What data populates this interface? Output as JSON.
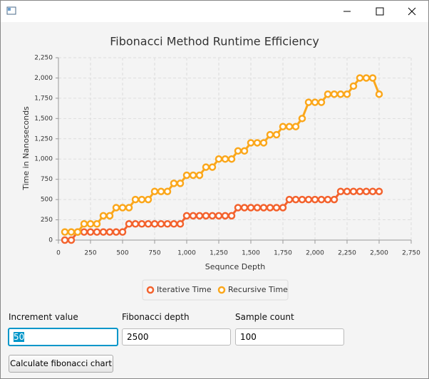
{
  "chart_data": {
    "type": "line",
    "title": "Fibonacci Method Runtime Efficiency",
    "x_label": "Sequnce Depth",
    "y_label": "Time in Nanoseconds",
    "x": [
      50,
      100,
      150,
      200,
      250,
      300,
      350,
      400,
      450,
      500,
      550,
      600,
      650,
      700,
      750,
      800,
      850,
      900,
      950,
      1000,
      1050,
      1100,
      1150,
      1200,
      1250,
      1300,
      1350,
      1400,
      1450,
      1500,
      1550,
      1600,
      1650,
      1700,
      1750,
      1800,
      1850,
      1900,
      1950,
      2000,
      2050,
      2100,
      2150,
      2200,
      2250,
      2300,
      2350,
      2400,
      2450,
      2500
    ],
    "series": [
      {
        "name": "Iterative Time",
        "color": "#f3622d",
        "values": [
          0,
          0,
          100,
          100,
          100,
          100,
          100,
          100,
          100,
          100,
          200,
          200,
          200,
          200,
          200,
          200,
          200,
          200,
          200,
          300,
          300,
          300,
          300,
          300,
          300,
          300,
          300,
          400,
          400,
          400,
          400,
          400,
          400,
          400,
          400,
          500,
          500,
          500,
          500,
          500,
          500,
          500,
          500,
          600,
          600,
          600,
          600,
          600,
          600,
          600
        ]
      },
      {
        "name": "Recursive Time",
        "color": "#fba71b",
        "values": [
          100,
          100,
          100,
          200,
          200,
          200,
          300,
          300,
          400,
          400,
          400,
          500,
          500,
          500,
          600,
          600,
          600,
          700,
          700,
          800,
          800,
          800,
          900,
          900,
          1000,
          1000,
          1000,
          1100,
          1100,
          1200,
          1200,
          1200,
          1300,
          1300,
          1400,
          1400,
          1400,
          1500,
          1700,
          1700,
          1700,
          1800,
          1800,
          1800,
          1800,
          1900,
          2000,
          2000,
          2000,
          1800
        ]
      }
    ],
    "xlim": [
      0,
      2750
    ],
    "xticks": [
      0,
      250,
      500,
      750,
      {
        "value": 1000,
        "label": "1,000"
      },
      {
        "value": 1250,
        "label": "1,250"
      },
      {
        "value": 1500,
        "label": "1,500"
      },
      {
        "value": 1750,
        "label": "1,750"
      },
      {
        "value": 2000,
        "label": "2,000"
      },
      {
        "value": 2250,
        "label": "2,250"
      },
      {
        "value": 2500,
        "label": "2,500"
      },
      {
        "value": 2750,
        "label": "2,750"
      }
    ],
    "ylim": [
      0,
      2250
    ],
    "yticks": [
      0,
      250,
      500,
      750,
      {
        "value": 1000,
        "label": "1,000"
      },
      {
        "value": 1250,
        "label": "1,250"
      },
      {
        "value": 1500,
        "label": "1,500"
      },
      {
        "value": 1750,
        "label": "1,750"
      },
      {
        "value": 2000,
        "label": "2,000"
      },
      {
        "value": 2250,
        "label": "2,250"
      }
    ],
    "grid": true,
    "legend": "bottom"
  },
  "form": {
    "fields": [
      {
        "label": "Increment value",
        "value": "50"
      },
      {
        "label": "Fibonacci depth",
        "value": "2500"
      },
      {
        "label": "Sample count",
        "value": "100"
      }
    ],
    "button": "Calculate fibonacci chart"
  }
}
